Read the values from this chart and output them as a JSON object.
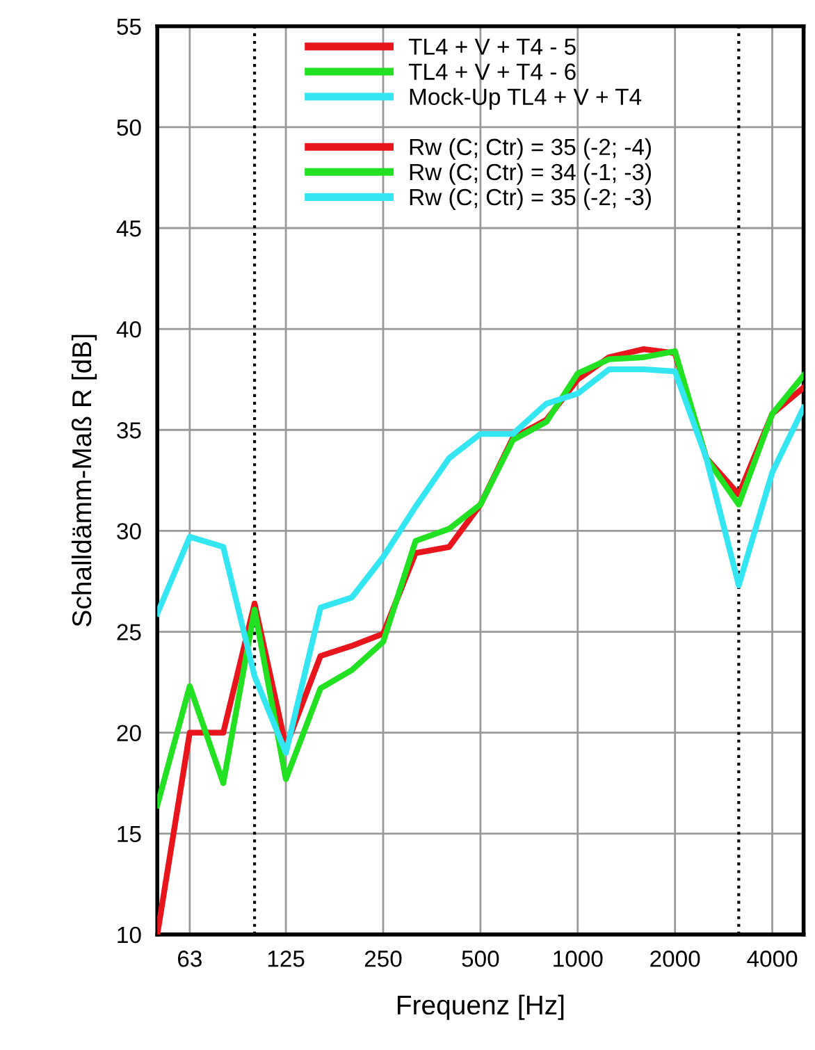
{
  "chart_data": {
    "type": "line",
    "xlabel": "Frequenz [Hz]",
    "ylabel": "Schalldämm-Maß R [dB]",
    "log": "x",
    "x": [
      50,
      63,
      80,
      100,
      125,
      160,
      200,
      250,
      315,
      400,
      500,
      630,
      800,
      1000,
      1250,
      1600,
      2000,
      2500,
      3150,
      4000,
      5000
    ],
    "series": [
      {
        "name": "TL4 + V + T4 - 5",
        "color": "#e8161c",
        "values": [
          10,
          20.0,
          20.0,
          26.4,
          19.3,
          23.8,
          24.3,
          24.9,
          28.9,
          29.2,
          31.3,
          34.6,
          35.5,
          37.5,
          38.6,
          39.0,
          38.8,
          33.6,
          31.8,
          35.8,
          37.1
        ]
      },
      {
        "name": "TL4 + V + T4 - 6",
        "color": "#22e022",
        "values": [
          16.4,
          22.3,
          17.5,
          26.1,
          17.7,
          22.2,
          23.1,
          24.5,
          29.5,
          30.1,
          31.3,
          34.5,
          35.4,
          37.8,
          38.5,
          38.6,
          38.9,
          33.6,
          31.3,
          35.8,
          37.7
        ]
      },
      {
        "name": "Mock-Up TL4 + V + T4",
        "color": "#33e6f2",
        "values": [
          25.9,
          29.7,
          29.2,
          22.8,
          19.0,
          26.2,
          26.7,
          28.7,
          31.2,
          33.6,
          34.8,
          34.8,
          36.3,
          36.8,
          38.0,
          38.0,
          37.9,
          33.6,
          27.3,
          32.9,
          36.1
        ]
      }
    ],
    "annotations": [
      "Rw (C; Ctr) = 35 (-2; -4)",
      "Rw (C; Ctr) = 34 (-1; -3)",
      "Rw (C; Ctr) = 35 (-2; -3)"
    ],
    "xlim": [
      50,
      5000
    ],
    "xticks": [
      63,
      125,
      250,
      500,
      1000,
      2000,
      4000
    ],
    "ylim": [
      10,
      55
    ],
    "yticks": [
      10,
      15,
      20,
      25,
      30,
      35,
      40,
      45,
      50,
      55
    ],
    "ref_lines": [
      {
        "axis": "x",
        "value": 100,
        "color": "#000000",
        "line_style": "dotted"
      },
      {
        "axis": "x",
        "value": 3150,
        "color": "#000000",
        "line_style": "dotted"
      }
    ],
    "grid": true,
    "legend": "top",
    "line_style": "solid",
    "marker": "none"
  }
}
